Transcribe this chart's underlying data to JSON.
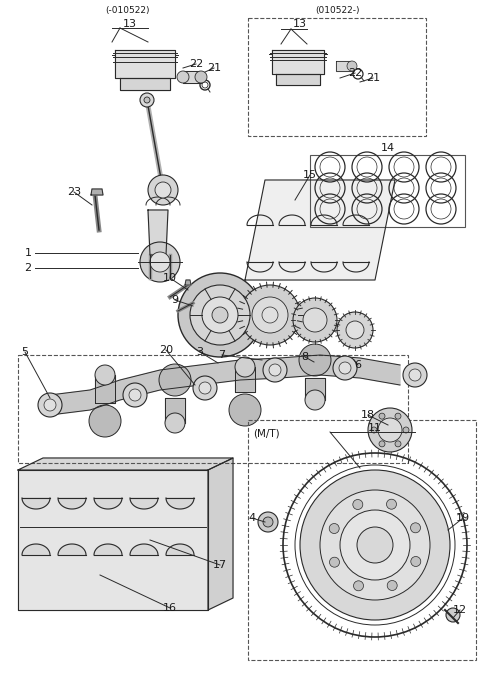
{
  "bg_color": "#ffffff",
  "lc": "#2a2a2a",
  "tc": "#1a1a1a",
  "figsize": [
    4.8,
    6.77
  ],
  "dpi": 100,
  "anno_left_top": "(-010522)",
  "anno_right_top": "(010522-)",
  "anno_mt": "(M/T)"
}
